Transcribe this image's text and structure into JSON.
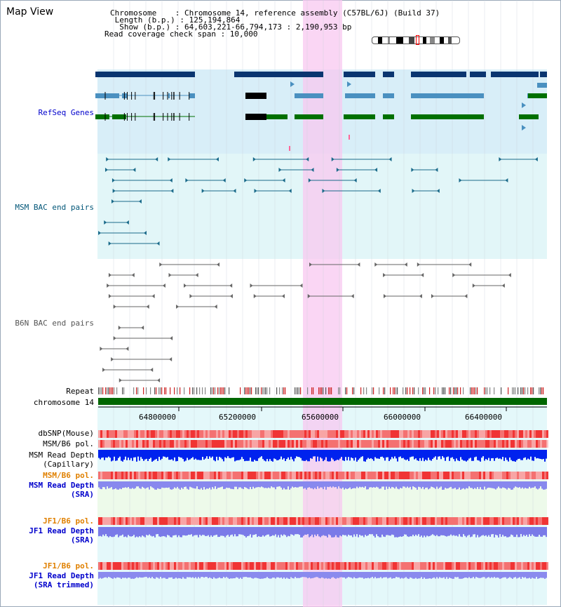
{
  "title": "Map View",
  "info": {
    "chromosome": "Chromosome    : Chromosome 14, reference assembly (C57BL/6J) (Build 37)",
    "length": " Length (b.p.) : 125,194,864",
    "show": "  Show (b.p.) : 64,603,221-66,794,173 : 2,190,953 bp",
    "coverage": "Read coverage check span : 10,000"
  },
  "tracks": {
    "refseq": "RefSeq Genes",
    "msm_bac": "MSM BAC end pairs",
    "b6n_bac": "B6N BAC end pairs",
    "repeat": "Repeat",
    "chromosome": "chromosome 14",
    "dbsnp": "dbSNP(Mouse)",
    "msm_pol_1": "MSM/B6 pol.",
    "msm_depth_cap_1": "MSM Read Depth",
    "msm_depth_cap_2": "(Capillary)",
    "msm_pol_2": "MSM/B6 pol.",
    "msm_depth_sra_1": "MSM Read Depth",
    "msm_depth_sra_2": "(SRA)",
    "jf1_pol_1": "JF1/B6 pol.",
    "jf1_depth_sra_1": "JF1 Read Depth",
    "jf1_depth_sra_2": "(SRA)",
    "jf1_pol_2": "JF1/B6 pol.",
    "jf1_depth_trim_1": "JF1 Read Depth",
    "jf1_depth_trim_2": "(SRA trimmed)"
  },
  "axis_ticks": [
    "64800000",
    "65200000",
    "65600000",
    "66000000",
    "66400000"
  ],
  "colors": {
    "refseq_label": "#0000cc",
    "msm_bac_label": "#005577",
    "b6n_label": "#555555",
    "pol_label": "#e08000",
    "depth_label": "#0000cc",
    "refseq_dark": "#0a3570",
    "refseq_mid": "#4a90c0",
    "refseq_green": "#007000",
    "highlight": "#f8c8f0",
    "chrom_bar": "#006600"
  }
}
